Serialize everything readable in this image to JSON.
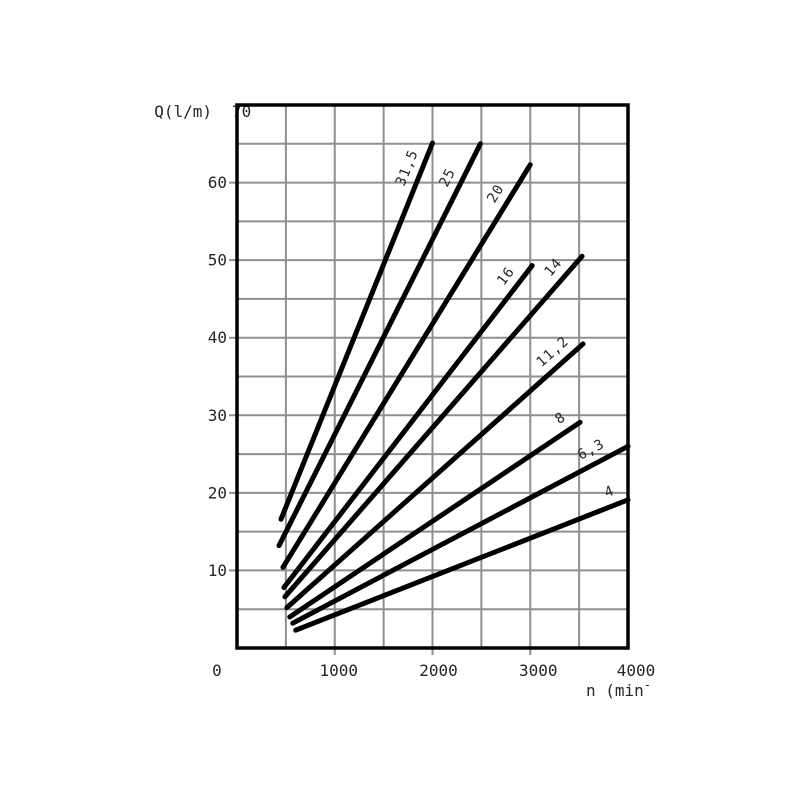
{
  "chart_data": {
    "type": "line",
    "title": "",
    "ylabel": "Q(l/m)",
    "y_top_label": "70",
    "xlabel_prefix": "n (min",
    "xlabel_sup": "-",
    "xlim": [
      0,
      4000
    ],
    "ylim": [
      0,
      70
    ],
    "x_ticks": [
      0,
      1000,
      2000,
      3000,
      4000
    ],
    "y_ticks": [
      10,
      20,
      30,
      40,
      50,
      60
    ],
    "x_minor_step": 500,
    "y_minor_step": 5,
    "grid": true,
    "legend": "labels along lines",
    "series": [
      {
        "name": "31,5",
        "points": [
          [
            450,
            16.6
          ],
          [
            2000,
            65.1
          ]
        ]
      },
      {
        "name": "25",
        "points": [
          [
            430,
            13.2
          ],
          [
            2490,
            65.0
          ]
        ]
      },
      {
        "name": "20",
        "points": [
          [
            470,
            10.4
          ],
          [
            3000,
            62.3
          ]
        ]
      },
      {
        "name": "16",
        "points": [
          [
            480,
            7.8
          ],
          [
            3020,
            49.3
          ]
        ]
      },
      {
        "name": "14",
        "points": [
          [
            490,
            6.6
          ],
          [
            3530,
            50.5
          ]
        ]
      },
      {
        "name": "11,2",
        "points": [
          [
            510,
            5.2
          ],
          [
            3540,
            39.2
          ]
        ]
      },
      {
        "name": "8",
        "points": [
          [
            540,
            4.0
          ],
          [
            3510,
            29.1
          ]
        ]
      },
      {
        "name": "6,3",
        "points": [
          [
            570,
            3.2
          ],
          [
            4000,
            26.0
          ]
        ]
      },
      {
        "name": "4",
        "points": [
          [
            600,
            2.3
          ],
          [
            4000,
            19.1
          ]
        ]
      }
    ],
    "colors": {
      "line": "#000000",
      "grid": "#8f8f8f",
      "text": "#262626",
      "background": "#ffffff",
      "border": "#000000"
    }
  }
}
